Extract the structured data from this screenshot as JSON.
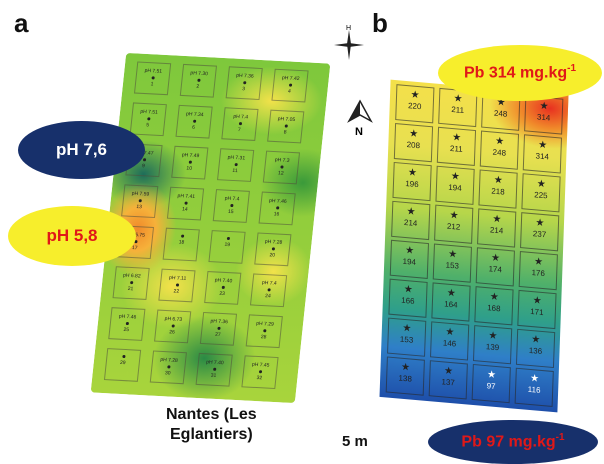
{
  "panels": {
    "a": "a",
    "b": "b"
  },
  "callouts": {
    "ph_high": "pH 7,6",
    "ph_low": "pH 5,8",
    "pb_high_prefix": "Pb 314 mg.kg",
    "pb_low_prefix": "Pb 97 mg.kg",
    "unit_sup": "-1"
  },
  "location": {
    "line1": "Nantes (Les",
    "line2": "Eglantiers)"
  },
  "scale": "5 m",
  "compass": {
    "a_label": "H",
    "b_label": "N"
  },
  "map_a": {
    "cells": [
      {
        "ph": "pH 7.51",
        "n": "1"
      },
      {
        "ph": "pH 7.30",
        "n": "2"
      },
      {
        "ph": "pH 7.36",
        "n": "3"
      },
      {
        "ph": "pH 7.42",
        "n": "4"
      },
      {
        "ph": "pH 7.51",
        "n": "5"
      },
      {
        "ph": "pH 7.34",
        "n": "6"
      },
      {
        "ph": "pH 7.4",
        "n": "7"
      },
      {
        "ph": "pH 7.05",
        "n": "8"
      },
      {
        "ph": "pH 7.47",
        "n": "9"
      },
      {
        "ph": "pH 7.49",
        "n": "10"
      },
      {
        "ph": "pH 7.31",
        "n": "11"
      },
      {
        "ph": "pH 7.3",
        "n": "12"
      },
      {
        "ph": "pH 7.59",
        "n": "13"
      },
      {
        "ph": "pH 7.41",
        "n": "14"
      },
      {
        "ph": "pH 7.4",
        "n": "15"
      },
      {
        "ph": "pH 7.46",
        "n": "16"
      },
      {
        "ph": "pH 5.75",
        "n": "17"
      },
      {
        "ph": "",
        "n": "18"
      },
      {
        "ph": "",
        "n": "19"
      },
      {
        "ph": "pH 7.28",
        "n": "20"
      },
      {
        "ph": "pH 6.82",
        "n": "21"
      },
      {
        "ph": "pH 7.11",
        "n": "22"
      },
      {
        "ph": "pH 7.40",
        "n": "23"
      },
      {
        "ph": "pH 7.4",
        "n": "24"
      },
      {
        "ph": "pH 7.46",
        "n": "25"
      },
      {
        "ph": "pH 6.73",
        "n": "26"
      },
      {
        "ph": "pH 7.36",
        "n": "27"
      },
      {
        "ph": "pH 7.29",
        "n": "28"
      },
      {
        "ph": "",
        "n": "29"
      },
      {
        "ph": "pH 7.28",
        "n": "30"
      },
      {
        "ph": "pH 7.40",
        "n": "31"
      },
      {
        "ph": "pH 7.45",
        "n": "32"
      }
    ]
  },
  "map_b": {
    "values": [
      "220",
      "211",
      "248",
      "314",
      "208",
      "211",
      "248",
      "314",
      "196",
      "194",
      "218",
      "225",
      "214",
      "212",
      "214",
      "237",
      "194",
      "153",
      "174",
      "176",
      "166",
      "164",
      "168",
      "171",
      "153",
      "146",
      "139",
      "136",
      "138",
      "137",
      "97",
      "116"
    ]
  },
  "colors": {
    "navy_callout": "#17306b",
    "yellow_callout": "#f7ee2c",
    "red_text": "#e01818"
  }
}
